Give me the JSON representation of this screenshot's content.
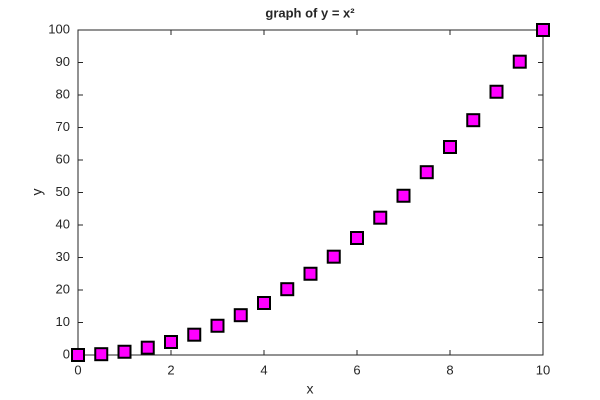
{
  "chart_data": {
    "type": "scatter",
    "title": "graph of y = x²",
    "xlabel": "x",
    "ylabel": "y",
    "x": [
      0,
      0.5,
      1,
      1.5,
      2,
      2.5,
      3,
      3.5,
      4,
      4.5,
      5,
      5.5,
      6,
      6.5,
      7,
      7.5,
      8,
      8.5,
      9,
      9.5,
      10
    ],
    "values": [
      0,
      0.25,
      1,
      2.25,
      4,
      6.25,
      9,
      12.25,
      16,
      20.25,
      25,
      30.25,
      36,
      42.25,
      49,
      56.25,
      64,
      72.25,
      81,
      90.25,
      100
    ],
    "color": "#ff00ff",
    "edge_color": "#000000",
    "marker": "square",
    "xlim": [
      0,
      10
    ],
    "xticks": [
      0,
      2,
      4,
      6,
      8,
      10
    ],
    "ylim": [
      0,
      100
    ],
    "yticks": [
      0,
      10,
      20,
      30,
      40,
      50,
      60,
      70,
      80,
      90,
      100
    ],
    "grid": false
  }
}
